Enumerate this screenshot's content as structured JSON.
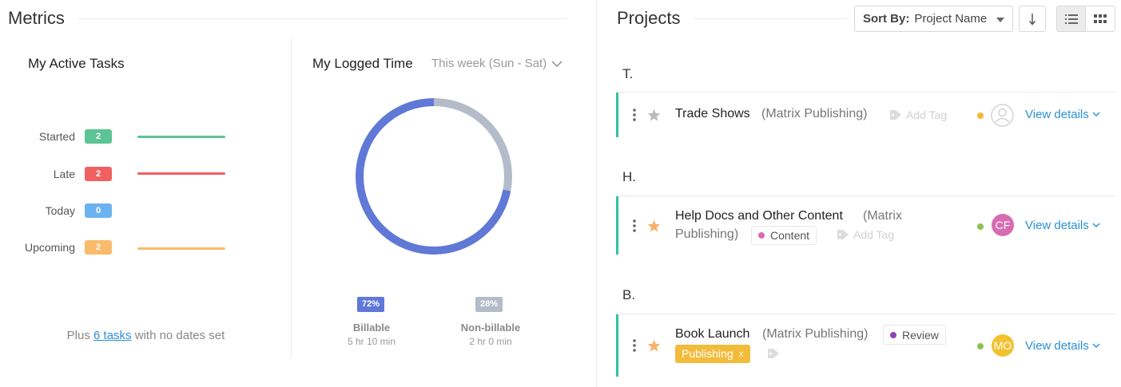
{
  "metrics": {
    "title": "Metrics",
    "active_tasks": {
      "title": "My Active Tasks",
      "rows": [
        {
          "label": "Started",
          "count": "2",
          "color": "#5dc495"
        },
        {
          "label": "Late",
          "count": "2",
          "color": "#f06060"
        },
        {
          "label": "Today",
          "count": "0",
          "color": "#6cb2f0"
        },
        {
          "label": "Upcoming",
          "count": "2",
          "color": "#f9bb6c"
        }
      ],
      "footer_prefix": "Plus",
      "footer_link": "6 tasks",
      "footer_suffix": "with no dates set"
    },
    "logged_time": {
      "title": "My Logged Time",
      "range": "This week (Sun - Sat)",
      "billable": {
        "pct": "72%",
        "fraction": 0.72,
        "label": "Billable",
        "time": "5 hr 10 min",
        "color": "#6078d6"
      },
      "non_billable": {
        "pct": "28%",
        "fraction": 0.28,
        "label": "Non-billable",
        "time": "2 hr 0 min",
        "color": "#b3bcc8"
      }
    }
  },
  "projects": {
    "title": "Projects",
    "sort_label": "Sort By:",
    "sort_value": "Project Name",
    "groups": [
      {
        "letter": "T.",
        "name": "Trade Shows",
        "client": "(Matrix Publishing)",
        "add_tag": "Add Tag",
        "status_color": "#f5b82e",
        "avatar": "",
        "view": "View details"
      },
      {
        "letter": "H.",
        "name": "Help Docs and Other Content",
        "client_line1": "(Matrix",
        "client_line2": "Publishing)",
        "tag": "Content",
        "tag_color": "#d76cb2",
        "add_tag": "Add Tag",
        "status_color": "#8dc24f",
        "avatar": "CF",
        "avatar_color": "#d76cb2",
        "view": "View details"
      },
      {
        "letter": "B.",
        "name": "Book Launch",
        "client": "(Matrix Publishing)",
        "tag": "Review",
        "tag_color": "#8e44ad",
        "publish_tag": "Publishing",
        "publish_close": "x",
        "status_color": "#8dc24f",
        "avatar": "MO",
        "avatar_color": "#f2c12e",
        "view": "View details"
      }
    ]
  }
}
